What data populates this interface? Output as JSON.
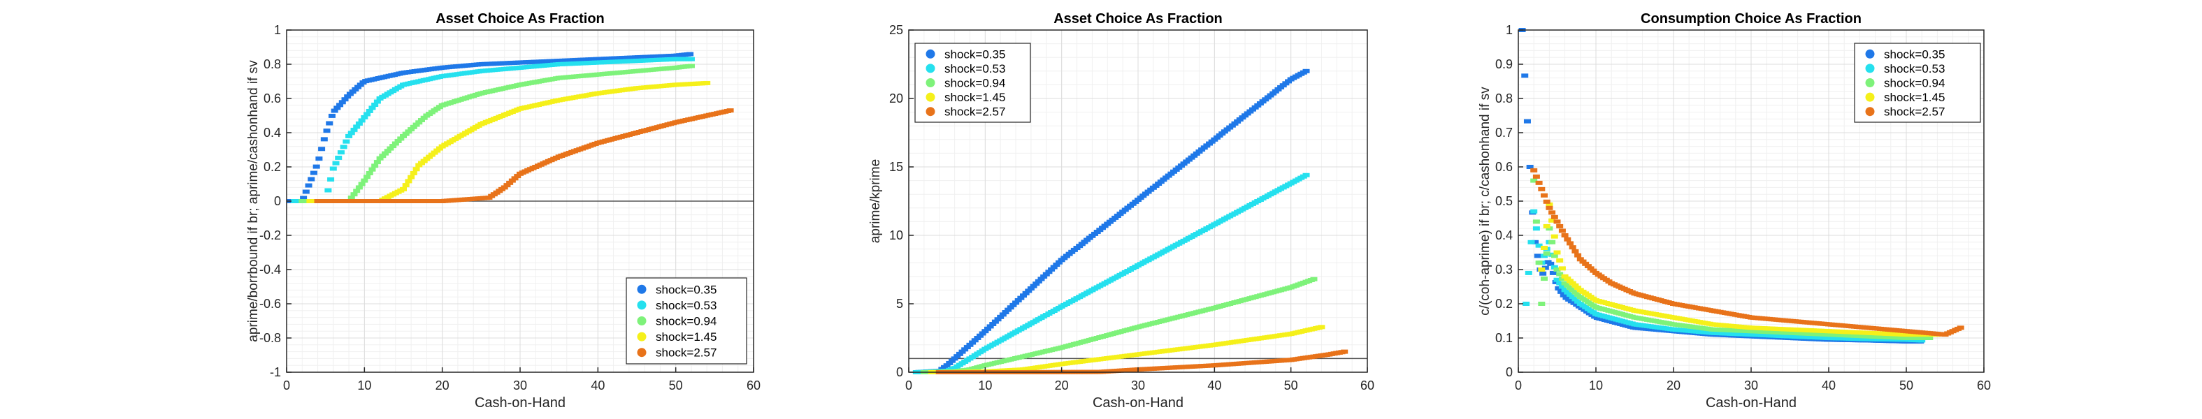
{
  "chart_data": [
    {
      "type": "scatter",
      "title": "Asset Choice As Fraction",
      "xlabel": "Cash-on-Hand",
      "ylabel": "aprime/borrbound if br; aprime/cashonhand if sv",
      "xlim": [
        0,
        60
      ],
      "ylim": [
        -1,
        1
      ],
      "xticks": [
        0,
        10,
        20,
        30,
        40,
        50,
        60
      ],
      "yticks": [
        -1,
        -0.8,
        -0.6,
        -0.4,
        -0.2,
        0,
        0.2,
        0.4,
        0.6,
        0.8,
        1
      ],
      "grid": true,
      "reference_line_y": 0,
      "legend_position": "bottom-right",
      "series": [
        {
          "name": "shock=0.35",
          "color": "#1f78e8",
          "x": [
            0.5,
            2,
            4,
            5,
            6,
            8,
            10,
            15,
            20,
            25,
            30,
            35,
            40,
            45,
            50,
            52
          ],
          "y": [
            0,
            0,
            0.22,
            0.39,
            0.52,
            0.62,
            0.7,
            0.75,
            0.78,
            0.8,
            0.81,
            0.82,
            0.83,
            0.84,
            0.85,
            0.86
          ]
        },
        {
          "name": "shock=0.53",
          "color": "#25e0ee",
          "x": [
            1,
            3,
            5,
            6,
            8,
            10,
            12,
            15,
            20,
            25,
            30,
            35,
            40,
            45,
            50,
            52
          ],
          "y": [
            0,
            0,
            0,
            0.19,
            0.38,
            0.49,
            0.6,
            0.68,
            0.73,
            0.76,
            0.78,
            0.8,
            0.81,
            0.82,
            0.83,
            0.83
          ]
        },
        {
          "name": "shock=0.94",
          "color": "#7ef27a",
          "x": [
            2,
            5,
            8,
            10,
            12,
            15,
            18,
            20,
            25,
            30,
            35,
            40,
            45,
            50,
            52
          ],
          "y": [
            0,
            0,
            0,
            0.12,
            0.25,
            0.38,
            0.5,
            0.56,
            0.63,
            0.68,
            0.72,
            0.74,
            0.76,
            0.78,
            0.79
          ]
        },
        {
          "name": "shock=1.45",
          "color": "#f5f01a",
          "x": [
            3,
            8,
            12,
            15,
            17,
            20,
            25,
            30,
            35,
            40,
            45,
            50,
            54
          ],
          "y": [
            0,
            0,
            0,
            0.07,
            0.21,
            0.32,
            0.45,
            0.54,
            0.59,
            0.63,
            0.66,
            0.68,
            0.69
          ]
        },
        {
          "name": "shock=2.57",
          "color": "#e8731a",
          "x": [
            4,
            10,
            20,
            26,
            28,
            30,
            35,
            40,
            45,
            50,
            55,
            57
          ],
          "y": [
            0,
            0,
            0,
            0.02,
            0.08,
            0.16,
            0.26,
            0.34,
            0.4,
            0.46,
            0.51,
            0.53
          ]
        }
      ]
    },
    {
      "type": "scatter",
      "title": "Asset Choice As Fraction",
      "xlabel": "Cash-on-Hand",
      "ylabel": "aprime/kprime",
      "xlim": [
        0,
        60
      ],
      "ylim": [
        0,
        25
      ],
      "xticks": [
        0,
        10,
        20,
        30,
        40,
        50,
        60
      ],
      "yticks": [
        0,
        5,
        10,
        15,
        20,
        25
      ],
      "grid": true,
      "reference_line_y": 1,
      "legend_position": "top-left",
      "series": [
        {
          "name": "shock=0.35",
          "color": "#1f78e8",
          "x": [
            1,
            4,
            5,
            10,
            20,
            30,
            40,
            50,
            52
          ],
          "y": [
            0,
            0.1,
            0.5,
            3,
            8.2,
            12.6,
            17.0,
            21.4,
            22.0
          ]
        },
        {
          "name": "shock=0.53",
          "color": "#25e0ee",
          "x": [
            1,
            5,
            6,
            10,
            20,
            30,
            40,
            50,
            52
          ],
          "y": [
            0,
            0.1,
            0.3,
            1.7,
            4.8,
            7.8,
            10.8,
            13.8,
            14.4
          ]
        },
        {
          "name": "shock=0.94",
          "color": "#7ef27a",
          "x": [
            2,
            6,
            8,
            10,
            20,
            30,
            40,
            50,
            53
          ],
          "y": [
            0,
            0.05,
            0.2,
            0.5,
            1.8,
            3.3,
            4.7,
            6.2,
            6.8
          ]
        },
        {
          "name": "shock=1.45",
          "color": "#f5f01a",
          "x": [
            3,
            10,
            15,
            20,
            30,
            40,
            50,
            54
          ],
          "y": [
            0,
            0.05,
            0.2,
            0.6,
            1.3,
            2.0,
            2.8,
            3.3
          ]
        },
        {
          "name": "shock=2.57",
          "color": "#e8731a",
          "x": [
            4,
            15,
            25,
            30,
            40,
            50,
            55,
            57
          ],
          "y": [
            0,
            0,
            0.02,
            0.2,
            0.5,
            0.9,
            1.3,
            1.5
          ]
        }
      ]
    },
    {
      "type": "scatter",
      "title": "Consumption Choice As Fraction",
      "xlabel": "Cash-on-Hand",
      "ylabel": "c/(coh-aprime) if br; c/cashonhand if sv",
      "xlim": [
        0,
        60
      ],
      "ylim": [
        0,
        1
      ],
      "xticks": [
        0,
        10,
        20,
        30,
        40,
        50,
        60
      ],
      "yticks": [
        0,
        0.1,
        0.2,
        0.3,
        0.4,
        0.5,
        0.6,
        0.7,
        0.8,
        0.9,
        1
      ],
      "grid": true,
      "legend_position": "top-right",
      "series": [
        {
          "name": "shock=0.35",
          "color": "#1f78e8",
          "x": [
            0.5,
            2,
            3,
            4,
            5,
            6,
            8,
            10,
            15,
            20,
            25,
            30,
            35,
            40,
            45,
            50,
            52
          ],
          "y": [
            1.0,
            0.4,
            0.28,
            0.33,
            0.25,
            0.22,
            0.19,
            0.16,
            0.13,
            0.12,
            0.11,
            0.105,
            0.1,
            0.095,
            0.093,
            0.09,
            0.09
          ]
        },
        {
          "name": "shock=0.53",
          "color": "#25e0ee",
          "x": [
            1,
            2,
            3,
            4,
            5,
            6,
            8,
            10,
            15,
            20,
            25,
            30,
            35,
            40,
            45,
            50,
            52
          ],
          "y": [
            0.2,
            0.47,
            0.32,
            0.38,
            0.27,
            0.24,
            0.2,
            0.17,
            0.14,
            0.125,
            0.115,
            0.11,
            0.105,
            0.1,
            0.097,
            0.095,
            0.093
          ]
        },
        {
          "name": "shock=0.94",
          "color": "#7ef27a",
          "x": [
            2,
            3,
            4,
            5,
            6,
            8,
            10,
            15,
            20,
            25,
            30,
            35,
            40,
            45,
            50,
            53
          ],
          "y": [
            0.56,
            0.2,
            0.42,
            0.3,
            0.26,
            0.22,
            0.19,
            0.16,
            0.14,
            0.125,
            0.12,
            0.115,
            0.11,
            0.105,
            0.1,
            0.1
          ]
        },
        {
          "name": "shock=1.45",
          "color": "#f5f01a",
          "x": [
            3,
            4,
            5,
            6,
            8,
            10,
            15,
            20,
            25,
            30,
            35,
            40,
            45,
            50,
            54
          ],
          "y": [
            0.3,
            0.49,
            0.35,
            0.28,
            0.24,
            0.21,
            0.18,
            0.16,
            0.14,
            0.13,
            0.125,
            0.12,
            0.115,
            0.11,
            0.11
          ]
        },
        {
          "name": "shock=2.57",
          "color": "#e8731a",
          "x": [
            2,
            4,
            6,
            8,
            10,
            12,
            15,
            20,
            25,
            30,
            35,
            40,
            45,
            50,
            55,
            57
          ],
          "y": [
            0.59,
            0.48,
            0.4,
            0.33,
            0.29,
            0.26,
            0.23,
            0.2,
            0.18,
            0.16,
            0.15,
            0.14,
            0.13,
            0.12,
            0.11,
            0.13
          ]
        }
      ]
    }
  ]
}
